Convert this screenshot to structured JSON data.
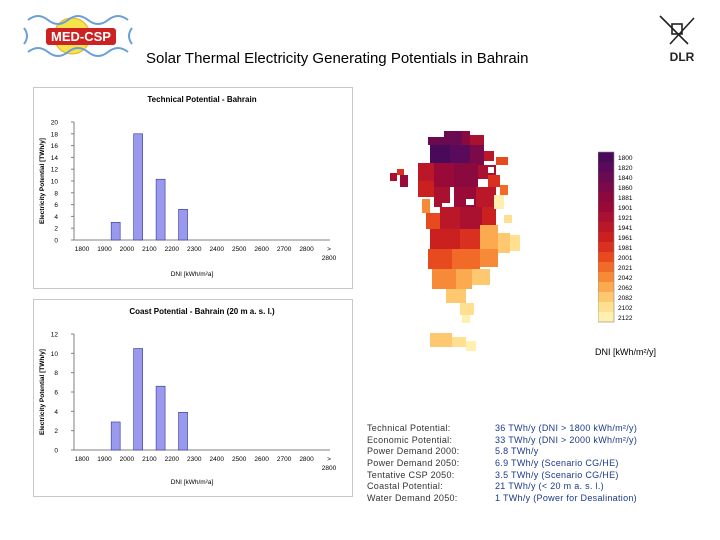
{
  "title": "Solar Thermal Electricity Generating Potentials in Bahrain",
  "logos": {
    "med_csp": "MED-CSP",
    "dlr": "DLR"
  },
  "colors": {
    "bar": "#9999ee",
    "bar_edge": "#333399",
    "value_text": "#1a3a8a",
    "med_csp_red": "#cc2222"
  },
  "chart_data": [
    {
      "type": "bar",
      "title": "Technical Potential - Bahrain",
      "ylabel": "Electricity Potential [TWh/y]",
      "xlabel": "DNI [kWh/m²a]",
      "ylim": [
        0,
        20
      ],
      "yticks": [
        0,
        2,
        4,
        6,
        8,
        10,
        12,
        14,
        16,
        18,
        20
      ],
      "categories": [
        "1800",
        "1900",
        "2000",
        "2100",
        "2200",
        "2300",
        "2400",
        "2500",
        "2600",
        "2700",
        "2800",
        "> 2800"
      ],
      "values": [
        0,
        3,
        18,
        10.3,
        5.2,
        0,
        0,
        0,
        0,
        0,
        0,
        0
      ],
      "grid": false
    },
    {
      "type": "bar",
      "title": "Coast Potential - Bahrain (20 m a. s. l.)",
      "ylabel": "Electricity Potential [TWh/y]",
      "xlabel": "DNI [kWh/m²a]",
      "ylim": [
        0,
        12
      ],
      "yticks": [
        0,
        2,
        4,
        6,
        8,
        10,
        12
      ],
      "categories": [
        "1800",
        "1900",
        "2000",
        "2100",
        "2200",
        "2300",
        "2400",
        "2500",
        "2600",
        "2700",
        "2800",
        "> 2800"
      ],
      "values": [
        0,
        2.9,
        10.5,
        6.6,
        3.9,
        0,
        0,
        0,
        0,
        0,
        0,
        0
      ],
      "grid": false
    }
  ],
  "map": {
    "legend_labels": [
      "1800",
      "1820",
      "1840",
      "1860",
      "1881",
      "1901",
      "1921",
      "1941",
      "1961",
      "1981",
      "2001",
      "2021",
      "2042",
      "2062",
      "2082",
      "2102",
      "2122"
    ],
    "legend_colors": [
      "#4a0a5a",
      "#5a0a5a",
      "#6a0a50",
      "#7a0a48",
      "#8a0a40",
      "#9a0a38",
      "#aa1030",
      "#ba1828",
      "#ca2020",
      "#da3020",
      "#e84a20",
      "#f26a28",
      "#f78a38",
      "#fbaa50",
      "#fdc870",
      "#fee090",
      "#fff0b0"
    ],
    "unit_label": "DNI [kWh/m²/y]"
  },
  "stats": [
    {
      "label": "Technical Potential:",
      "value": "36 TWh/y (DNI > 1800 kWh/m²/y)"
    },
    {
      "label": "Economic Potential:",
      "value": "33 TWh/y (DNI > 2000 kWh/m²/y)"
    },
    {
      "label": "Power Demand 2000:",
      "value": "5.8 TWh/y"
    },
    {
      "label": "Power Demand 2050:",
      "value": "6.9 TWh/y (Scenario CG/HE)"
    },
    {
      "label": "Tentative CSP 2050:",
      "value": "3.5 TWh/y (Scenario CG/HE)"
    },
    {
      "label": "Coastal Potential:",
      "value": "21 TWh/y (< 20 m a. s. l.)"
    },
    {
      "label": "Water Demand 2050:",
      "value": "1 TWh/y (Power for Desalination)"
    }
  ]
}
